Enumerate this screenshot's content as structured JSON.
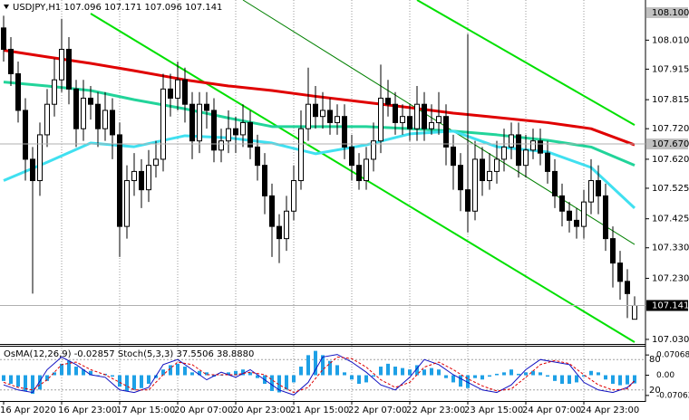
{
  "chart_data": [
    {
      "type": "candlestick",
      "title": "USDJPY,H1  107.096 107.171 107.096 107.141",
      "categories": [
        "16 Apr 2020",
        null,
        null,
        null,
        null,
        null,
        null,
        null,
        "16 Apr 23:00",
        null,
        null,
        null,
        null,
        null,
        null,
        null,
        "17 Apr 15:00",
        null,
        null,
        null,
        null,
        null,
        null,
        null,
        "20 Apr 07:00",
        null,
        null,
        null,
        null,
        null,
        null,
        null,
        "20 Apr 23:00",
        null,
        null,
        null,
        null,
        null,
        null,
        null,
        "21 Apr 15:00",
        null,
        null,
        null,
        null,
        null,
        null,
        null,
        "22 Apr 07:00",
        null,
        null,
        null,
        null,
        null,
        null,
        null,
        "22 Apr 23:00",
        null,
        null,
        null,
        null,
        null,
        null,
        null,
        "23 Apr 15:00",
        null,
        null,
        null,
        null,
        null,
        null,
        null,
        "24 Apr 07:00",
        null,
        null,
        null,
        null,
        null,
        null,
        null,
        "24 Apr 23:00",
        null,
        null,
        null,
        null,
        null,
        null,
        null
      ],
      "open": [
        108.05,
        107.98,
        107.9,
        107.78,
        107.62,
        107.55,
        107.7,
        107.8,
        107.88,
        107.98,
        107.85,
        107.72,
        107.82,
        107.8,
        107.72,
        107.78,
        107.7,
        107.4,
        107.55,
        107.58,
        107.52,
        107.6,
        107.62,
        107.85,
        107.82,
        107.88,
        107.8,
        107.68,
        107.8,
        107.78,
        107.65,
        107.68,
        107.72,
        107.7,
        107.74,
        107.66,
        107.6,
        107.5,
        107.4,
        107.36,
        107.45,
        107.55,
        107.72,
        107.8,
        107.76,
        107.78,
        107.74,
        107.76,
        107.66,
        107.6,
        107.55,
        107.62,
        107.68,
        107.82,
        107.8,
        107.74,
        107.76,
        107.72,
        107.8,
        107.72,
        107.74,
        107.76,
        107.66,
        107.6,
        107.52,
        107.45,
        107.62,
        107.55,
        107.58,
        107.62,
        107.66,
        107.7,
        107.6,
        107.65,
        107.68,
        107.64,
        107.58,
        107.5,
        107.45,
        107.42,
        107.4,
        107.48,
        107.55,
        107.5,
        107.36,
        107.28,
        107.22,
        107.096
      ],
      "high": [
        108.09,
        108.02,
        107.94,
        107.82,
        107.66,
        107.74,
        107.85,
        107.95,
        108.08,
        108.02,
        107.88,
        107.88,
        107.86,
        107.84,
        107.84,
        107.82,
        107.74,
        107.6,
        107.64,
        107.62,
        107.65,
        107.68,
        107.9,
        107.9,
        107.94,
        107.92,
        107.84,
        107.84,
        107.84,
        107.82,
        107.72,
        107.78,
        107.76,
        107.8,
        107.78,
        107.7,
        107.64,
        107.54,
        107.44,
        107.5,
        107.6,
        107.78,
        107.92,
        107.86,
        107.84,
        107.82,
        107.8,
        107.8,
        107.7,
        107.64,
        107.66,
        107.74,
        107.93,
        107.88,
        107.84,
        107.8,
        107.8,
        107.86,
        107.84,
        107.8,
        107.84,
        107.8,
        107.7,
        107.64,
        108.03,
        107.68,
        107.66,
        107.64,
        107.68,
        107.72,
        107.74,
        107.74,
        107.7,
        107.72,
        107.72,
        107.68,
        107.62,
        107.54,
        107.48,
        107.46,
        107.52,
        107.62,
        107.6,
        107.54,
        107.4,
        107.32,
        107.26,
        107.171
      ],
      "low": [
        107.94,
        107.86,
        107.74,
        107.55,
        107.18,
        107.5,
        107.66,
        107.76,
        107.84,
        107.8,
        107.66,
        107.68,
        107.75,
        107.66,
        107.68,
        107.62,
        107.3,
        107.36,
        107.5,
        107.46,
        107.48,
        107.56,
        107.58,
        107.76,
        107.78,
        107.74,
        107.62,
        107.64,
        107.72,
        107.61,
        107.61,
        107.64,
        107.64,
        107.66,
        107.62,
        107.55,
        107.44,
        107.3,
        107.28,
        107.32,
        107.42,
        107.52,
        107.68,
        107.72,
        107.72,
        107.7,
        107.7,
        107.62,
        107.55,
        107.52,
        107.52,
        107.58,
        107.64,
        107.76,
        107.7,
        107.7,
        107.68,
        107.68,
        107.68,
        107.7,
        107.7,
        107.6,
        107.52,
        107.45,
        107.38,
        107.42,
        107.5,
        107.52,
        107.54,
        107.58,
        107.62,
        107.56,
        107.56,
        107.62,
        107.6,
        107.54,
        107.46,
        107.4,
        107.38,
        107.36,
        107.36,
        107.44,
        107.44,
        107.32,
        107.2,
        107.16,
        107.1,
        107.096
      ],
      "close": [
        107.98,
        107.9,
        107.78,
        107.62,
        107.55,
        107.7,
        107.8,
        107.88,
        107.98,
        107.85,
        107.72,
        107.82,
        107.8,
        107.72,
        107.78,
        107.7,
        107.4,
        107.55,
        107.58,
        107.52,
        107.6,
        107.62,
        107.85,
        107.82,
        107.88,
        107.8,
        107.68,
        107.8,
        107.78,
        107.65,
        107.68,
        107.72,
        107.7,
        107.74,
        107.66,
        107.6,
        107.5,
        107.4,
        107.36,
        107.45,
        107.55,
        107.72,
        107.8,
        107.76,
        107.78,
        107.74,
        107.76,
        107.66,
        107.6,
        107.55,
        107.62,
        107.68,
        107.82,
        107.8,
        107.74,
        107.76,
        107.72,
        107.8,
        107.72,
        107.74,
        107.76,
        107.66,
        107.6,
        107.52,
        107.45,
        107.62,
        107.55,
        107.58,
        107.62,
        107.66,
        107.7,
        107.6,
        107.65,
        107.68,
        107.64,
        107.58,
        107.5,
        107.45,
        107.42,
        107.4,
        107.48,
        107.55,
        107.5,
        107.36,
        107.28,
        107.22,
        107.18,
        107.141
      ],
      "series": [
        {
          "color": "#e00000",
          "x": [
            0,
            6,
            12,
            18,
            25,
            31,
            37,
            43,
            50,
            56,
            62,
            68,
            75,
            81,
            87
          ],
          "values": [
            107.977,
            107.955,
            107.934,
            107.91,
            107.88,
            107.86,
            107.845,
            107.826,
            107.806,
            107.789,
            107.771,
            107.757,
            107.74,
            107.72,
            107.667
          ]
        },
        {
          "color": "#22d49a",
          "x": [
            0,
            6,
            12,
            18,
            25,
            31,
            37,
            43,
            50,
            56,
            62,
            68,
            75,
            81,
            87
          ],
          "values": [
            107.873,
            107.86,
            107.845,
            107.815,
            107.785,
            107.755,
            107.727,
            107.727,
            107.727,
            107.72,
            107.712,
            107.7,
            107.682,
            107.66,
            107.6
          ]
        },
        {
          "color": "#40e0f0",
          "x": [
            0,
            6,
            12,
            18,
            25,
            31,
            37,
            43,
            50,
            56,
            62,
            68,
            75,
            81,
            87
          ],
          "values": [
            107.55,
            107.61,
            107.673,
            107.661,
            107.697,
            107.69,
            107.673,
            107.638,
            107.667,
            107.703,
            107.712,
            107.661,
            107.644,
            107.593,
            107.46
          ]
        }
      ],
      "trendlines": [
        {
          "color": "#00e000",
          "x": [
            12,
            87
          ],
          "values": [
            108.097,
            107.021
          ]
        },
        {
          "color": "#00e000",
          "x": [
            57,
            87
          ],
          "values": [
            108.1415,
            107.732
          ]
        },
        {
          "color": "#008000",
          "x": [
            33,
            87
          ],
          "values": [
            108.1415,
            107.341
          ]
        }
      ],
      "ylim": [
        107.015,
        108.1415
      ],
      "yticks": [
        {
          "value": 108.01,
          "label": "108.010"
        },
        {
          "value": 107.915,
          "label": "107.915"
        },
        {
          "value": 107.815,
          "label": "107.815"
        },
        {
          "value": 107.72,
          "label": "107.720"
        },
        {
          "value": 107.62,
          "label": "107.620"
        },
        {
          "value": 107.525,
          "label": "107.525"
        },
        {
          "value": 107.425,
          "label": "107.425"
        },
        {
          "value": 107.33,
          "label": "107.330"
        },
        {
          "value": 107.23,
          "label": "107.230"
        },
        {
          "value": 107.03,
          "label": "107.030"
        }
      ],
      "price_markers": [
        {
          "value": 108.1,
          "label": "108.100"
        },
        {
          "value": 107.67,
          "label": "107.670"
        }
      ],
      "last_price": 107.141,
      "grid": true
    },
    {
      "type": "oscillator",
      "title": "OsMA(12,26,9) -0.02857  Stoch(5,3,3) 37.5506 38.8880",
      "values": [
        -0.02,
        -0.03,
        -0.04,
        -0.055,
        -0.065,
        -0.05,
        -0.02,
        0.01,
        0.04,
        0.05,
        0.03,
        0.02,
        0.015,
        0.0,
        0.005,
        -0.005,
        -0.04,
        -0.055,
        -0.05,
        -0.045,
        -0.03,
        -0.01,
        0.02,
        0.035,
        0.04,
        0.03,
        0.01,
        0.015,
        0.01,
        -0.005,
        0.0,
        0.01,
        0.015,
        0.02,
        0.01,
        -0.01,
        -0.03,
        -0.055,
        -0.06,
        -0.05,
        -0.025,
        0.03,
        0.07,
        0.085,
        0.07,
        0.05,
        0.035,
        0.01,
        -0.015,
        -0.03,
        -0.025,
        -0.005,
        0.03,
        0.04,
        0.03,
        0.025,
        0.02,
        0.035,
        0.02,
        0.025,
        0.02,
        -0.01,
        -0.025,
        -0.04,
        -0.045,
        -0.01,
        -0.015,
        -0.005,
        0.005,
        0.01,
        0.02,
        0.005,
        0.01,
        0.015,
        0.01,
        -0.005,
        -0.02,
        -0.03,
        -0.03,
        -0.025,
        -0.005,
        0.015,
        0.01,
        -0.015,
        -0.03,
        -0.035,
        -0.032,
        -0.02857
      ],
      "color": "#1ea0e6",
      "ylim": [
        -0.0868,
        0.0996
      ],
      "yticks": [
        0.07068,
        {
          "value": 0,
          "label": "0.00"
        },
        -0.07062
      ],
      "series": [
        {
          "color": "#1010c0",
          "axis": "y2",
          "x": [
            0,
            2,
            4,
            6,
            8,
            10,
            12,
            14,
            16,
            18,
            20,
            22,
            24,
            26,
            28,
            30,
            32,
            34,
            36,
            38,
            40,
            42,
            44,
            46,
            48,
            50,
            52,
            54,
            56,
            58,
            60,
            62,
            64,
            66,
            68,
            70,
            72,
            74,
            76,
            78,
            80,
            82,
            84,
            86,
            87
          ],
          "values": [
            30,
            20,
            15,
            60,
            85,
            70,
            50,
            45,
            20,
            15,
            25,
            70,
            80,
            60,
            40,
            55,
            45,
            60,
            40,
            20,
            10,
            35,
            85,
            90,
            75,
            55,
            30,
            20,
            45,
            80,
            70,
            50,
            35,
            20,
            15,
            30,
            60,
            80,
            75,
            70,
            35,
            20,
            15,
            25,
            37.5506
          ]
        },
        {
          "color": "#e00000",
          "axis": "y2",
          "dashed": true,
          "x": [
            0,
            2,
            4,
            6,
            8,
            10,
            12,
            14,
            16,
            18,
            20,
            22,
            24,
            26,
            28,
            30,
            32,
            34,
            36,
            38,
            40,
            42,
            44,
            46,
            48,
            50,
            52,
            54,
            56,
            58,
            60,
            62,
            64,
            66,
            68,
            70,
            72,
            74,
            76,
            78,
            80,
            82,
            84,
            86,
            87
          ],
          "values": [
            35,
            25,
            20,
            40,
            70,
            75,
            60,
            50,
            35,
            20,
            20,
            50,
            75,
            70,
            50,
            50,
            50,
            55,
            50,
            30,
            15,
            25,
            60,
            85,
            82,
            65,
            40,
            25,
            35,
            65,
            75,
            60,
            42,
            28,
            18,
            22,
            45,
            70,
            78,
            72,
            50,
            30,
            20,
            22,
            38.888
          ]
        }
      ],
      "y2lim": [
        0,
        100
      ],
      "y2ticks": [
        80,
        20
      ]
    }
  ]
}
